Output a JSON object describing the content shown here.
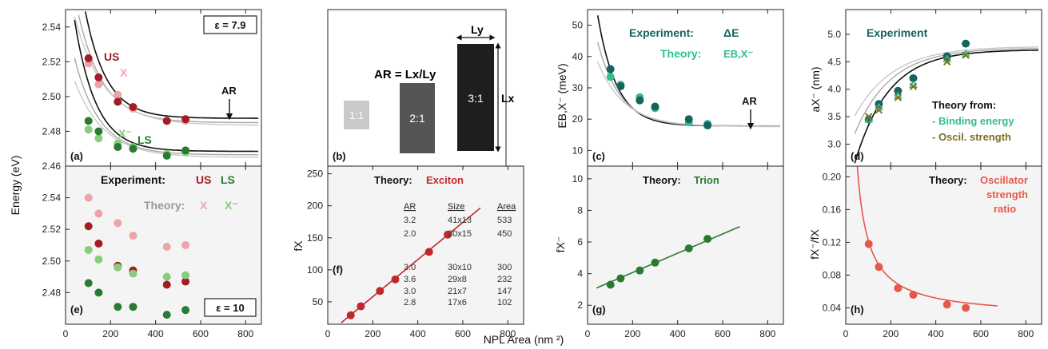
{
  "figure": {
    "shared_xlabel": "NPL Area (nm ²)",
    "ylabel_energy": "Energy (eV)"
  },
  "colors": {
    "us": "#a31c22",
    "us_theory": "#eea3a8",
    "ls": "#2a7a32",
    "ls_theory": "#86cd7c",
    "teal": "#17645c",
    "theory_green": "#2fbf8a",
    "olive": "#7f6f1e",
    "olive_green": "#6a8a28",
    "red_fit": "#c0282c",
    "salmon": "#e8574b",
    "curve_black": "#111111",
    "curve_gray": "#a8a8a8",
    "curve_light": "#c8c8c8"
  },
  "panels": {
    "a": {
      "label": "(a)",
      "eps_label": "ε = 7.9",
      "label_us": "US",
      "label_x": "X",
      "label_ls": "LS",
      "label_xminus": "X⁻",
      "arrow_label": "AR"
    },
    "b": {
      "label": "(b)",
      "ar_formula": "AR = Lx/Ly",
      "box_labels": [
        "1:1",
        "2:1",
        "3:1"
      ],
      "dim_y": "Ly",
      "dim_x": "Lx"
    },
    "c": {
      "label": "(c)",
      "legend_experiment": "Experiment:",
      "legend_experiment_sym": "ΔE",
      "legend_theory": "Theory:",
      "legend_theory_sym": "EB,X⁻",
      "arrow_label": "AR",
      "ylabel": "EB,X⁻ (meV)"
    },
    "d": {
      "label": "(d)",
      "experiment": "Experiment",
      "theory_from": "Theory from:",
      "binding": "- Binding energy",
      "oscil": "- Oscil. strength",
      "ylabel": "aX⁻ (nm)"
    },
    "e": {
      "label": "(e)",
      "eps_label": "ε = 10",
      "legend_experiment": "Experiment:",
      "legend_us": "US",
      "legend_ls": "LS",
      "legend_theory": "Theory:",
      "legend_x": "X",
      "legend_xminus": "X⁻"
    },
    "f": {
      "label": "(f)",
      "theory": "Theory:",
      "theory_name": "Exciton",
      "ylabel": "fX",
      "table_headers": [
        "AR",
        "Size",
        "Area"
      ],
      "table_rows": [
        [
          "3.2",
          "41x13",
          "533"
        ],
        [
          "2.0",
          "30x15",
          "450"
        ],
        [
          "3.0",
          "30x10",
          "300"
        ],
        [
          "3.6",
          "29x8",
          "232"
        ],
        [
          "3.0",
          "21x7",
          "147"
        ],
        [
          "2.8",
          "17x6",
          "102"
        ]
      ]
    },
    "g": {
      "label": "(g)",
      "theory": "Theory:",
      "theory_name": "Trion",
      "ylabel": "fX⁻"
    },
    "h": {
      "label": "(h)",
      "theory": "Theory:",
      "theory_name_1": "Oscillator",
      "theory_name_2": "strength",
      "theory_name_3": "ratio",
      "ylabel": "fX⁻/fX"
    }
  },
  "chart_data": [
    {
      "panel": "a",
      "type": "scatter",
      "title": "",
      "xlabel": "",
      "ylabel": "Energy (eV)",
      "xlim": [
        0,
        870
      ],
      "ylim": [
        2.46,
        2.55
      ],
      "xticks": [
        0,
        200,
        400,
        600,
        800
      ],
      "yticks": [
        2.46,
        2.48,
        2.5,
        2.52,
        2.54
      ],
      "series": [
        {
          "name": "US",
          "x": [
            102,
            147,
            232,
            300,
            450,
            533
          ],
          "y": [
            2.522,
            2.511,
            2.497,
            2.494,
            2.486,
            2.487
          ]
        },
        {
          "name": "X",
          "x": [
            102,
            147,
            232,
            300,
            450,
            533
          ],
          "y": [
            2.519,
            2.507,
            2.501,
            2.493,
            2.486,
            2.486
          ]
        },
        {
          "name": "LS",
          "x": [
            102,
            147,
            232,
            300,
            450,
            533
          ],
          "y": [
            2.486,
            2.48,
            2.471,
            2.47,
            2.466,
            2.469
          ]
        },
        {
          "name": "X⁻",
          "x": [
            102,
            147,
            232,
            300,
            450,
            533
          ],
          "y": [
            2.481,
            2.476,
            2.473,
            2.471,
            2.467,
            2.468
          ]
        }
      ]
    },
    {
      "panel": "c",
      "type": "scatter",
      "title": "",
      "xlabel": "",
      "ylabel": "EB,X⁻ (meV)",
      "xlim": [
        0,
        870
      ],
      "ylim": [
        5,
        55
      ],
      "xticks": [
        0,
        200,
        400,
        600,
        800
      ],
      "yticks": [
        10,
        20,
        30,
        40,
        50
      ],
      "series": [
        {
          "name": "ΔE",
          "x": [
            102,
            147,
            232,
            300,
            450,
            533
          ],
          "y": [
            36,
            30.5,
            26,
            24,
            20,
            18
          ]
        },
        {
          "name": "EB,X⁻",
          "x": [
            102,
            147,
            232,
            300,
            450,
            533
          ],
          "y": [
            33.5,
            31,
            27,
            23.5,
            19,
            18.5
          ]
        }
      ]
    },
    {
      "panel": "d",
      "type": "scatter",
      "title": "",
      "xlabel": "",
      "ylabel": "aX⁻ (nm)",
      "xlim": [
        0,
        870
      ],
      "ylim": [
        2.6,
        5.45
      ],
      "xticks": [
        0,
        200,
        400,
        600,
        800
      ],
      "yticks": [
        3.0,
        3.5,
        4.0,
        4.5,
        5.0
      ],
      "series": [
        {
          "name": "Experiment",
          "x": [
            102,
            147,
            232,
            300,
            450,
            533
          ],
          "y": [
            3.45,
            3.73,
            3.97,
            4.2,
            4.6,
            4.83
          ]
        },
        {
          "name": "Binding energy",
          "x": [
            102,
            147,
            232,
            300,
            450,
            533
          ],
          "y": [
            3.45,
            3.67,
            3.88,
            4.08,
            4.55,
            4.65
          ]
        },
        {
          "name": "Oscil. strength",
          "x": [
            102,
            147,
            232,
            300,
            450,
            533
          ],
          "y": [
            3.5,
            3.62,
            3.85,
            4.05,
            4.5,
            4.62
          ]
        }
      ]
    },
    {
      "panel": "e",
      "type": "scatter",
      "title": "",
      "xlabel": "",
      "ylabel": "Energy (eV)",
      "xlim": [
        0,
        870
      ],
      "ylim": [
        2.46,
        2.56
      ],
      "xticks": [
        0,
        200,
        400,
        600,
        800
      ],
      "yticks": [
        2.48,
        2.5,
        2.52,
        2.54
      ],
      "series": [
        {
          "name": "US",
          "x": [
            102,
            147,
            232,
            300,
            450,
            533
          ],
          "y": [
            2.522,
            2.511,
            2.497,
            2.494,
            2.485,
            2.487
          ]
        },
        {
          "name": "X",
          "x": [
            102,
            147,
            232,
            300,
            450,
            533
          ],
          "y": [
            2.54,
            2.53,
            2.524,
            2.516,
            2.509,
            2.51
          ]
        },
        {
          "name": "LS",
          "x": [
            102,
            147,
            232,
            300,
            450,
            533
          ],
          "y": [
            2.486,
            2.48,
            2.471,
            2.471,
            2.466,
            2.469
          ]
        },
        {
          "name": "X⁻",
          "x": [
            102,
            147,
            232,
            300,
            450,
            533
          ],
          "y": [
            2.507,
            2.501,
            2.496,
            2.492,
            2.49,
            2.491
          ]
        }
      ]
    },
    {
      "panel": "f",
      "type": "scatter",
      "title": "",
      "xlabel": "",
      "ylabel": "fX",
      "xlim": [
        0,
        870
      ],
      "ylim": [
        15,
        262
      ],
      "xticks": [
        0,
        200,
        400,
        600,
        800
      ],
      "yticks": [
        50,
        100,
        150,
        200,
        250
      ],
      "series": [
        {
          "name": "Exciton",
          "x": [
            102,
            147,
            232,
            300,
            450,
            533
          ],
          "y": [
            29,
            43,
            67,
            85,
            128,
            155
          ]
        }
      ]
    },
    {
      "panel": "g",
      "type": "scatter",
      "title": "",
      "xlabel": "",
      "ylabel": "fX⁻",
      "xlim": [
        0,
        870
      ],
      "ylim": [
        0.8,
        10.8
      ],
      "xticks": [
        0,
        200,
        400,
        600,
        800
      ],
      "yticks": [
        2,
        4,
        6,
        8,
        10
      ],
      "series": [
        {
          "name": "Trion",
          "x": [
            102,
            147,
            232,
            300,
            450,
            533
          ],
          "y": [
            3.3,
            3.7,
            4.2,
            4.7,
            5.6,
            6.2
          ]
        }
      ]
    },
    {
      "panel": "h",
      "type": "scatter",
      "title": "",
      "xlabel": "",
      "ylabel": "fX⁻/fX",
      "xlim": [
        0,
        870
      ],
      "ylim": [
        0.02,
        0.213
      ],
      "xticks": [
        0,
        200,
        400,
        600,
        800
      ],
      "yticks": [
        0.04,
        0.08,
        0.12,
        0.16,
        0.2
      ],
      "series": [
        {
          "name": "Oscillator strength ratio",
          "x": [
            102,
            147,
            232,
            300,
            450,
            533
          ],
          "y": [
            0.118,
            0.09,
            0.064,
            0.056,
            0.044,
            0.04
          ]
        }
      ]
    }
  ]
}
